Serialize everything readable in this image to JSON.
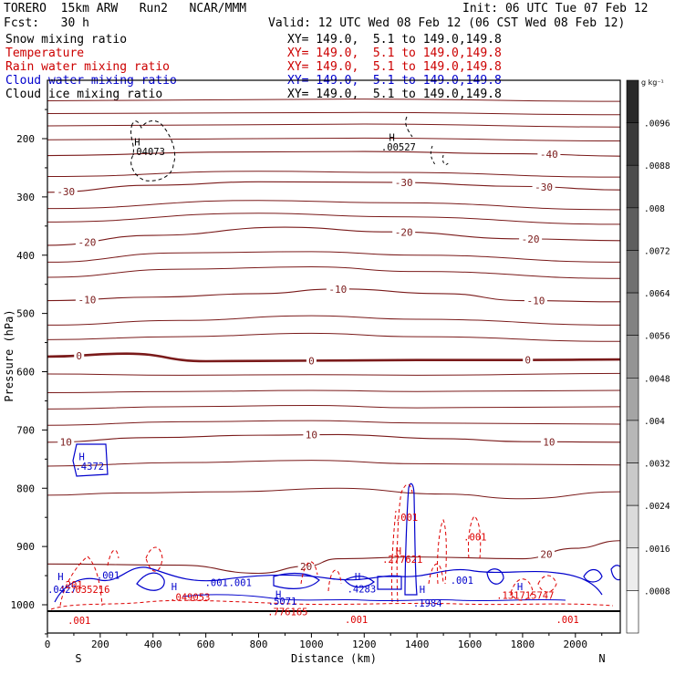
{
  "header": {
    "title_left": "TORERO  15km ARW   Run2   NCAR/MMM",
    "init": "Init: 06 UTC Tue 07 Feb 12",
    "fcst": "Fcst:   30 h",
    "valid": "Valid: 12 UTC Wed 08 Feb 12 (06 CST Wed 08 Feb 12)"
  },
  "fields": [
    {
      "name": "Snow mixing ratio",
      "xy": "XY= 149.0,  5.1 to 149.0,149.8",
      "color": "#000000"
    },
    {
      "name": "Temperature",
      "xy": "XY= 149.0,  5.1 to 149.0,149.8",
      "color": "#cc0000"
    },
    {
      "name": "Rain water mixing ratio",
      "xy": "XY= 149.0,  5.1 to 149.0,149.8",
      "color": "#cc0000"
    },
    {
      "name": "Cloud water mixing ratio",
      "xy": "XY= 149.0,  5.1 to 149.0,149.8",
      "color": "#0000cc"
    },
    {
      "name": "Cloud ice mixing ratio",
      "xy": "XY= 149.0,  5.1 to 149.0,149.8",
      "color": "#000000"
    }
  ],
  "colors": {
    "temperature": "#7a1a1a",
    "rain": "#dd0000",
    "cloud_water": "#0000cc",
    "ice": "#000000"
  },
  "chart_data": {
    "type": "contour",
    "xlabel": "Distance (km)",
    "ylabel": "Pressure (hPa)",
    "xlim": [
      0,
      2170
    ],
    "ylim": [
      1050,
      100
    ],
    "x_ticks": [
      0,
      200,
      400,
      600,
      800,
      1000,
      1200,
      1400,
      1600,
      1800,
      2000
    ],
    "y_ticks": [
      200,
      300,
      400,
      500,
      600,
      700,
      800,
      900,
      1000
    ],
    "x_end_labels": {
      "left": "S",
      "right": "N"
    },
    "temperature_contours": [
      {
        "level": -40,
        "label": "-40",
        "points": [
          [
            0,
            229
          ],
          [
            700,
            223
          ],
          [
            1200,
            222
          ],
          [
            1800,
            226
          ],
          [
            2170,
            230
          ]
        ],
        "labels_at": [
          1900
        ]
      },
      {
        "level": -30,
        "label": "-30",
        "points": [
          [
            0,
            292
          ],
          [
            400,
            280
          ],
          [
            800,
            274
          ],
          [
            1300,
            275
          ],
          [
            1800,
            282
          ],
          [
            2170,
            288
          ]
        ],
        "labels_at": [
          70,
          1350,
          1880
        ]
      },
      {
        "level": -20,
        "label": "-20",
        "points": [
          [
            0,
            383
          ],
          [
            400,
            366
          ],
          [
            900,
            352
          ],
          [
            1300,
            360
          ],
          [
            1800,
            372
          ],
          [
            2170,
            375
          ]
        ],
        "labels_at": [
          150,
          1350,
          1830
        ]
      },
      {
        "level": -10,
        "label": "-10",
        "points": [
          [
            0,
            478
          ],
          [
            400,
            472
          ],
          [
            800,
            466
          ],
          [
            1100,
            458
          ],
          [
            1500,
            466
          ],
          [
            1800,
            478
          ],
          [
            2170,
            480
          ]
        ],
        "labels_at": [
          150,
          1100,
          1850
        ]
      },
      {
        "level": 0,
        "label": "0",
        "points": [
          [
            0,
            574
          ],
          [
            300,
            569
          ],
          [
            600,
            582
          ],
          [
            1000,
            581
          ],
          [
            1400,
            580
          ],
          [
            1800,
            580
          ],
          [
            2170,
            579
          ]
        ],
        "labels_at": [
          120,
          1000,
          1820
        ]
      },
      {
        "level": 10,
        "label": "10",
        "points": [
          [
            0,
            721
          ],
          [
            400,
            713
          ],
          [
            800,
            709
          ],
          [
            1100,
            708
          ],
          [
            1500,
            715
          ],
          [
            1800,
            720
          ],
          [
            2170,
            721
          ]
        ],
        "labels_at": [
          70,
          1000,
          1900
        ]
      },
      {
        "level": 20,
        "label": "20",
        "points": [
          [
            0,
            930
          ],
          [
            500,
            932
          ],
          [
            800,
            946
          ],
          [
            980,
            934
          ],
          [
            1100,
            921
          ],
          [
            1400,
            918
          ],
          [
            1800,
            921
          ],
          [
            2000,
            903
          ],
          [
            2170,
            890
          ]
        ],
        "labels_at": [
          980,
          1890
        ]
      }
    ],
    "extra_temperature_lines": [
      {
        "points": [
          [
            0,
            135
          ],
          [
            1200,
            132
          ],
          [
            2170,
            136
          ]
        ]
      },
      {
        "points": [
          [
            0,
            157
          ],
          [
            1200,
            155
          ],
          [
            2170,
            159
          ]
        ]
      },
      {
        "points": [
          [
            0,
            178
          ],
          [
            1200,
            175
          ],
          [
            2170,
            180
          ]
        ]
      },
      {
        "points": [
          [
            0,
            202
          ],
          [
            1200,
            199
          ],
          [
            2170,
            204
          ]
        ]
      },
      {
        "points": [
          [
            0,
            265
          ],
          [
            800,
            256
          ],
          [
            1300,
            258
          ],
          [
            2170,
            266
          ]
        ]
      },
      {
        "points": [
          [
            0,
            320
          ],
          [
            800,
            306
          ],
          [
            1300,
            310
          ],
          [
            2170,
            322
          ]
        ]
      },
      {
        "points": [
          [
            0,
            343
          ],
          [
            800,
            328
          ],
          [
            1300,
            334
          ],
          [
            2170,
            347
          ]
        ]
      },
      {
        "points": [
          [
            0,
            412
          ],
          [
            500,
            396
          ],
          [
            1000,
            394
          ],
          [
            1400,
            400
          ],
          [
            2170,
            412
          ]
        ]
      },
      {
        "points": [
          [
            0,
            438
          ],
          [
            500,
            424
          ],
          [
            1000,
            420
          ],
          [
            1400,
            428
          ],
          [
            2170,
            440
          ]
        ]
      },
      {
        "points": [
          [
            0,
            520
          ],
          [
            500,
            512
          ],
          [
            1000,
            504
          ],
          [
            1400,
            510
          ],
          [
            2170,
            520
          ]
        ]
      },
      {
        "points": [
          [
            0,
            545
          ],
          [
            500,
            540
          ],
          [
            1000,
            534
          ],
          [
            1400,
            540
          ],
          [
            2170,
            548
          ]
        ]
      },
      {
        "points": [
          [
            0,
            604
          ],
          [
            500,
            606
          ],
          [
            1000,
            605
          ],
          [
            1400,
            606
          ],
          [
            2170,
            603
          ]
        ]
      },
      {
        "points": [
          [
            0,
            636
          ],
          [
            500,
            634
          ],
          [
            1000,
            632
          ],
          [
            1400,
            634
          ],
          [
            2170,
            632
          ]
        ]
      },
      {
        "points": [
          [
            0,
            664
          ],
          [
            500,
            660
          ],
          [
            1000,
            658
          ],
          [
            1400,
            662
          ],
          [
            2170,
            660
          ]
        ]
      },
      {
        "points": [
          [
            0,
            692
          ],
          [
            500,
            686
          ],
          [
            1000,
            684
          ],
          [
            1400,
            688
          ],
          [
            2170,
            690
          ]
        ]
      },
      {
        "points": [
          [
            0,
            762
          ],
          [
            500,
            756
          ],
          [
            1000,
            752
          ],
          [
            1400,
            758
          ],
          [
            2170,
            760
          ]
        ]
      },
      {
        "points": [
          [
            0,
            812
          ],
          [
            300,
            808
          ],
          [
            700,
            806
          ],
          [
            1100,
            800
          ],
          [
            1500,
            810
          ],
          [
            1800,
            818
          ],
          [
            2170,
            806
          ]
        ]
      }
    ],
    "annotations": [
      {
        "text": "H",
        "x": 340,
        "y": 212,
        "color": "#000000"
      },
      {
        "text": ".04073",
        "x": 380,
        "y": 228,
        "color": "#000000"
      },
      {
        "text": "H",
        "x": 1305,
        "y": 204,
        "color": "#000000"
      },
      {
        "text": ".00527",
        "x": 1330,
        "y": 220,
        "color": "#000000"
      },
      {
        "text": "H",
        "x": 130,
        "y": 752,
        "color": "#0000cc"
      },
      {
        "text": ".4372",
        "x": 160,
        "y": 768,
        "color": "#0000cc"
      },
      {
        "text": "H",
        "x": 1330,
        "y": 914,
        "color": "#dd0000"
      },
      {
        "text": ".277621",
        "x": 1345,
        "y": 928,
        "color": "#dd0000"
      },
      {
        "text": ".001",
        "x": 1360,
        "y": 856,
        "color": "#dd0000"
      },
      {
        "text": ".001",
        "x": 1620,
        "y": 890,
        "color": "#dd0000"
      },
      {
        "text": "H",
        "x": 50,
        "y": 958,
        "color": "#0000cc"
      },
      {
        "text": ".0427",
        "x": 55,
        "y": 980,
        "color": "#0000cc"
      },
      {
        "text": ".035216",
        "x": 160,
        "y": 980,
        "color": "#dd0000"
      },
      {
        "text": ".201",
        "x": 90,
        "y": 972,
        "color": "#dd0000"
      },
      {
        "text": ".001",
        "x": 230,
        "y": 955,
        "color": "#0000cc"
      },
      {
        "text": "H",
        "x": 480,
        "y": 975,
        "color": "#0000cc"
      },
      {
        "text": ".049053",
        "x": 540,
        "y": 993,
        "color": "#dd0000"
      },
      {
        "text": ".001",
        "x": 640,
        "y": 968,
        "color": "#0000cc"
      },
      {
        "text": ".001",
        "x": 730,
        "y": 968,
        "color": "#0000cc"
      },
      {
        "text": "H",
        "x": 875,
        "y": 988,
        "color": "#0000cc"
      },
      {
        "text": ".5071",
        "x": 890,
        "y": 1000,
        "color": "#0000cc"
      },
      {
        "text": ".776165",
        "x": 910,
        "y": 1018,
        "color": "#dd0000"
      },
      {
        "text": "H",
        "x": 1175,
        "y": 958,
        "color": "#0000cc"
      },
      {
        "text": ".4283",
        "x": 1190,
        "y": 979,
        "color": "#0000cc"
      },
      {
        "text": "H",
        "x": 1420,
        "y": 980,
        "color": "#0000cc"
      },
      {
        "text": ".1984",
        "x": 1440,
        "y": 1003,
        "color": "#0000cc"
      },
      {
        "text": ".001",
        "x": 1570,
        "y": 964,
        "color": "#0000cc"
      },
      {
        "text": "H",
        "x": 1790,
        "y": 975,
        "color": "#0000cc"
      },
      {
        "text": ".131715747",
        "x": 1810,
        "y": 990,
        "color": "#dd0000"
      },
      {
        "text": ".001",
        "x": 1170,
        "y": 1031,
        "color": "#dd0000"
      },
      {
        "text": ".001",
        "x": 1970,
        "y": 1031,
        "color": "#dd0000"
      },
      {
        "text": ".001",
        "x": 120,
        "y": 1033,
        "color": "#dd0000"
      }
    ],
    "colorbar": {
      "unit": "g kg⁻¹",
      "labels": [
        ".0096",
        ".0088",
        ".008",
        ".0072",
        ".0064",
        ".0056",
        ".0048",
        ".004",
        ".0032",
        ".0024",
        ".0016",
        ".0008"
      ],
      "levels": [
        0.0104,
        0.0096,
        0.0088,
        0.008,
        0.0072,
        0.0064,
        0.0056,
        0.0048,
        0.004,
        0.0032,
        0.0024,
        0.0016,
        0.0008,
        0
      ]
    }
  }
}
